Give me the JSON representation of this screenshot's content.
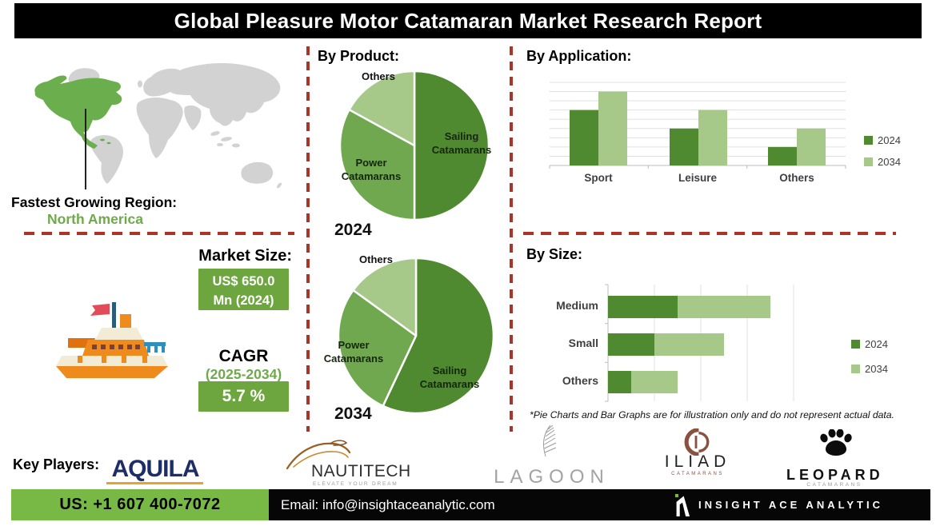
{
  "title": "Global Pleasure Motor Catamaran Market Research Report",
  "region": {
    "label": "Fastest Growing Region:",
    "value": "North America"
  },
  "market": {
    "size_label": "Market Size:",
    "size_value_line1": "US$ 650.0",
    "size_value_line2": "Mn (2024)",
    "cagr_label": "CAGR",
    "cagr_period": "(2025-2034)",
    "cagr_value": "5.7 %"
  },
  "sections": {
    "product": "By Product:",
    "application": "By Application:",
    "size": "By Size:"
  },
  "footnote": "*Pie Charts and Bar Graphs are for illustration only and do not represent actual data.",
  "key_players": {
    "label": "Key Players:",
    "aquila": "AQUILA",
    "nautitech": "NAUTITECH",
    "nautitech_tagline": "ELEVATE YOUR DREAM",
    "lagoon": "LAGOON",
    "iliad": "ILIAD",
    "iliad_sub": "CATAMARANS",
    "leopard": "LEOPARD",
    "leopard_sub": "CATAMARANS"
  },
  "footer": {
    "phone": "US: +1 607 400-7072",
    "email": "Email: info@insightaceanalytic.com",
    "brand": "INSIGHT ACE ANALYTIC"
  },
  "colors": {
    "dark_green": "#4f8a30",
    "mid_green": "#6fa84f",
    "light_green": "#a6c98a",
    "accent_green": "#78b844",
    "box_green": "#6da63f",
    "map_green": "#6bae4d",
    "map_gray": "#d2d2d2",
    "dash_red": "#a93528"
  },
  "chart_data": [
    {
      "id": "pie-2024",
      "type": "pie",
      "year_label": "2024",
      "title": "By Product (2024)",
      "slices": [
        {
          "label": "Sailing Catamarans",
          "value": 50,
          "color": "#4f8a30"
        },
        {
          "label": "Power Catamarans",
          "value": 33,
          "color": "#6fa84f"
        },
        {
          "label": "Others",
          "value": 17,
          "color": "#a6c98a"
        }
      ]
    },
    {
      "id": "pie-2034",
      "type": "pie",
      "year_label": "2034",
      "title": "By Product (2034)",
      "slices": [
        {
          "label": "Sailing Catamarans",
          "value": 57,
          "color": "#4f8a30"
        },
        {
          "label": "Power Catamarans",
          "value": 28,
          "color": "#6fa84f"
        },
        {
          "label": "Others",
          "value": 15,
          "color": "#a6c98a"
        }
      ]
    },
    {
      "id": "app-chart",
      "type": "bar",
      "title": "By Application",
      "categories": [
        "Sport",
        "Leisure",
        "Others"
      ],
      "series": [
        {
          "name": "2024",
          "color": "#4f8a30",
          "values": [
            6,
            4,
            2
          ]
        },
        {
          "name": "2034",
          "color": "#a6c98a",
          "values": [
            8,
            6,
            4
          ]
        }
      ],
      "ylim": [
        0,
        9
      ],
      "grid": true,
      "legend_position": "right"
    },
    {
      "id": "size-chart",
      "type": "stacked-horizontal-bar",
      "title": "By Size",
      "categories": [
        "Medium",
        "Small",
        "Others"
      ],
      "series": [
        {
          "name": "2024",
          "color": "#4f8a30",
          "values": [
            1.5,
            1.0,
            0.5
          ]
        },
        {
          "name": "2034",
          "color": "#a6c98a",
          "values": [
            2.0,
            1.5,
            1.0
          ]
        }
      ],
      "xlim": [
        0,
        4
      ],
      "grid": true,
      "legend_position": "right"
    }
  ]
}
